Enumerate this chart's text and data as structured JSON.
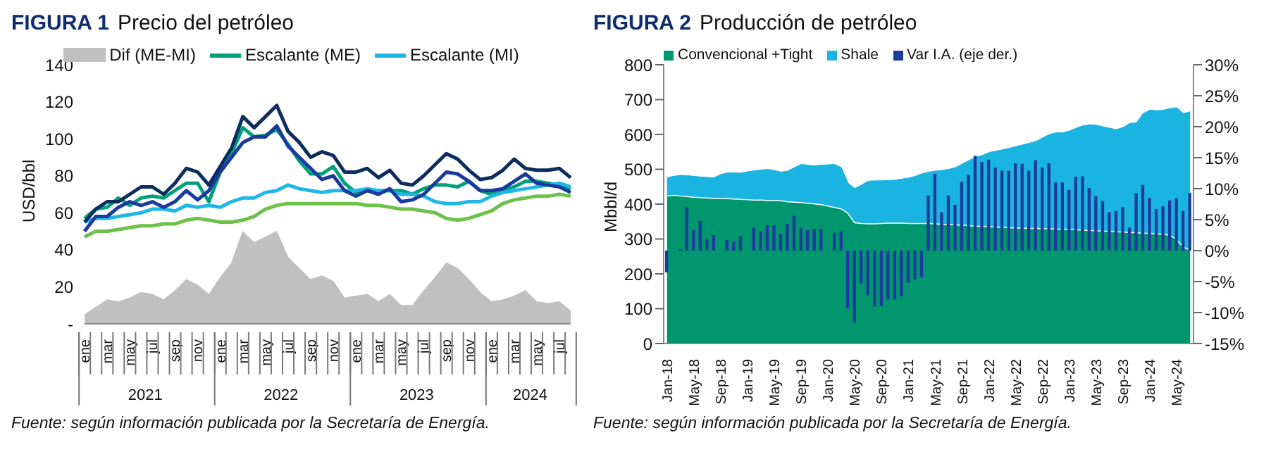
{
  "chart_data": [
    {
      "type": "line",
      "title": "FIGURA 1",
      "subtitle": "Precio del petróleo",
      "ylabel": "USD/bbl",
      "categories": [
        "ene",
        null,
        "mar",
        null,
        "may",
        null,
        "jul",
        null,
        "sep",
        null,
        "nov",
        null,
        "ene",
        null,
        "mar",
        null,
        "may",
        null,
        "jul",
        null,
        "sep",
        null,
        "nov",
        null,
        "ene",
        null,
        "mar",
        null,
        "may",
        null,
        "jul",
        null,
        "sep",
        null,
        "nov",
        null,
        "ene",
        null,
        "mar",
        null,
        "may",
        null,
        "jul",
        null
      ],
      "ylim": [
        0,
        140
      ],
      "yticks": [
        {
          "value": 0,
          "label": "-"
        },
        20,
        40,
        60,
        80,
        100,
        120,
        140
      ],
      "legend": "top",
      "marker": "none",
      "series": [
        {
          "name": "Dif (ME-MI)",
          "type": "area",
          "color": "#c0c0c0",
          "values": [
            5,
            9,
            13,
            12,
            14,
            17,
            16,
            13,
            18,
            24,
            21,
            16,
            25,
            33,
            50,
            44,
            47,
            50,
            36,
            30,
            24,
            26,
            23,
            14,
            15,
            16,
            12,
            16,
            10,
            10,
            18,
            25,
            33,
            30,
            24,
            17,
            12,
            13,
            15,
            18,
            12,
            11,
            12,
            7
          ]
        },
        {
          "name": "Escalante (ME)",
          "color": "#00a07a",
          "values": [
            57,
            62,
            63,
            68,
            64,
            68,
            69,
            68,
            72,
            76,
            76,
            66,
            82,
            92,
            106,
            101,
            102,
            105,
            97,
            88,
            81,
            81,
            85,
            76,
            71,
            72,
            72,
            72,
            72,
            70,
            73,
            75,
            75,
            74,
            77,
            72,
            70,
            72,
            74,
            77,
            77,
            76,
            75,
            73
          ]
        },
        {
          "name": "Escalante (MI)",
          "color": "#1fb8e6",
          "values": [
            55,
            57,
            57,
            58,
            59,
            60,
            62,
            62,
            61,
            64,
            63,
            64,
            63,
            66,
            68,
            68,
            71,
            72,
            75,
            73,
            72,
            71,
            72,
            72,
            72,
            73,
            72,
            72,
            70,
            70,
            69,
            66,
            65,
            65,
            66,
            66,
            69,
            71,
            72,
            73,
            74,
            75,
            76,
            74
          ]
        },
        {
          "color": "#6cc24a",
          "values": [
            47,
            50,
            50,
            51,
            52,
            53,
            53,
            54,
            54,
            56,
            57,
            56,
            55,
            55,
            56,
            58,
            62,
            64,
            65,
            65,
            65,
            65,
            65,
            65,
            65,
            64,
            64,
            63,
            62,
            62,
            61,
            60,
            57,
            56,
            57,
            59,
            61,
            65,
            67,
            68,
            69,
            69,
            70,
            69
          ]
        },
        {
          "color": "#1a3aa0",
          "values": [
            50,
            58,
            58,
            63,
            66,
            64,
            66,
            63,
            66,
            72,
            67,
            72,
            82,
            90,
            98,
            101,
            101,
            107,
            96,
            90,
            84,
            78,
            80,
            72,
            69,
            72,
            70,
            73,
            66,
            67,
            70,
            76,
            82,
            81,
            77,
            72,
            72,
            73,
            77,
            81,
            76,
            75,
            74,
            71
          ]
        },
        {
          "color": "#0d2d5e",
          "values": [
            55,
            62,
            66,
            66,
            70,
            74,
            74,
            70,
            76,
            84,
            82,
            75,
            85,
            95,
            112,
            106,
            112,
            118,
            104,
            98,
            90,
            93,
            91,
            82,
            82,
            84,
            79,
            83,
            76,
            75,
            80,
            86,
            92,
            89,
            83,
            78,
            79,
            83,
            89,
            84,
            83,
            83,
            84,
            79
          ]
        }
      ],
      "annotations": [
        "2021",
        "2022",
        "2023",
        "2024",
        "Fuente: según información publicada por la Secretaría de Energía."
      ]
    },
    {
      "type": "area",
      "title": "FIGURA 2",
      "subtitle": "Producción de petróleo",
      "ylabel": "Mbbl/d",
      "stacked": true,
      "legend": "top left",
      "categories": [
        "Jan-18",
        null,
        null,
        null,
        "May-18",
        null,
        null,
        null,
        "Sep-18",
        null,
        null,
        null,
        "Jan-19",
        null,
        null,
        null,
        "May-19",
        null,
        null,
        null,
        "Sep-19",
        null,
        null,
        null,
        "Jan-20",
        null,
        null,
        null,
        "May-20",
        null,
        null,
        null,
        "Sep-20",
        null,
        null,
        null,
        "Jan-21",
        null,
        null,
        null,
        "May-21",
        null,
        null,
        null,
        "Sep-21",
        null,
        null,
        null,
        "Jan-22",
        null,
        null,
        null,
        "May-22",
        null,
        null,
        null,
        "Sep-22",
        null,
        null,
        null,
        "Jan-23",
        null,
        null,
        null,
        "May-23",
        null,
        null,
        null,
        "Sep-23",
        null,
        null,
        null,
        "Jan-24",
        null,
        null,
        null,
        "May-24",
        null,
        null
      ],
      "ylim": [
        0,
        800
      ],
      "yticks": [
        0,
        100,
        200,
        300,
        400,
        500,
        600,
        700,
        800
      ],
      "y2lim": [
        -15,
        30
      ],
      "y2ticks": [
        {
          "value": -15,
          "label": "-15%"
        },
        {
          "value": -10,
          "label": "-10%"
        },
        {
          "value": -5,
          "label": "-5%"
        },
        {
          "value": 0,
          "label": "0%"
        },
        {
          "value": 5,
          "label": "5%"
        },
        {
          "value": 10,
          "label": "10%"
        },
        {
          "value": 15,
          "label": "15%"
        },
        {
          "value": 20,
          "label": "20%"
        },
        {
          "value": 25,
          "label": "25%"
        },
        {
          "value": 30,
          "label": "30%"
        }
      ],
      "series": [
        {
          "name": "Convencional +Tight",
          "color": "#00966e",
          "values": [
            425,
            427,
            425,
            423,
            421,
            420,
            419,
            418,
            418,
            417,
            416,
            415,
            414,
            413,
            413,
            412,
            412,
            411,
            408,
            407,
            406,
            404,
            402,
            400,
            396,
            392,
            388,
            375,
            348,
            346,
            345,
            345,
            346,
            347,
            347,
            347,
            346,
            346,
            346,
            346,
            345,
            344,
            343,
            342,
            341,
            340,
            338,
            338,
            337,
            336,
            335,
            334,
            333,
            333,
            332,
            332,
            331,
            331,
            330,
            330,
            329,
            328,
            327,
            326,
            325,
            324,
            323,
            322,
            321,
            320,
            319,
            318,
            317,
            316,
            315,
            312,
            300,
            278,
            270
          ]
        },
        {
          "name": "Shale",
          "color": "#19b4e0",
          "values": [
            51,
            53,
            58,
            59,
            59,
            58,
            58,
            58,
            67,
            73,
            74,
            74,
            79,
            83,
            85,
            88,
            85,
            81,
            87,
            98,
            108,
            108,
            108,
            112,
            117,
            122,
            117,
            85,
            97,
            109,
            121,
            122,
            121,
            121,
            122,
            125,
            129,
            134,
            141,
            146,
            150,
            153,
            157,
            163,
            174,
            185,
            197,
            202,
            211,
            216,
            221,
            226,
            232,
            237,
            243,
            248,
            259,
            269,
            275,
            275,
            281,
            290,
            298,
            302,
            302,
            298,
            295,
            292,
            299,
            312,
            314,
            342,
            353,
            352,
            355,
            362,
            377,
            382,
            395
          ]
        },
        {
          "name": "Var I.A. (eje der.)",
          "type": "bar",
          "axis": "y2",
          "color": "#1c3c9c",
          "values": [
            -3.5,
            null,
            0.2,
            7.0,
            3.3,
            4.8,
            1.9,
            2.5,
            null,
            1.7,
            1.4,
            2.3,
            null,
            3.7,
            3.1,
            4.1,
            4.1,
            2.7,
            4.3,
            5.6,
            3.7,
            3.3,
            3.5,
            3.5,
            null,
            2.9,
            3.1,
            -9.3,
            -11.6,
            -5.3,
            -7.2,
            -9.0,
            -9.0,
            -7.9,
            -7.9,
            -7.4,
            -5.2,
            -4.7,
            -4.3,
            8.9,
            12.4,
            6.2,
            8.9,
            7.4,
            11.1,
            12.2,
            15.3,
            14.3,
            14.7,
            13.4,
            12.9,
            12.9,
            14.1,
            14.0,
            12.9,
            14.6,
            13.4,
            14.1,
            11.0,
            11.0,
            9.8,
            11.9,
            12.0,
            10.1,
            8.8,
            8.0,
            6.2,
            6.4,
            7.0,
            3.7,
            9.3,
            10.6,
            8.5,
            6.7,
            7.2,
            8.1,
            8.5,
            6.4,
            9.3
          ]
        }
      ],
      "annotations": [
        "Fuente: según información publicada por la Secretaría de Energía."
      ]
    }
  ]
}
